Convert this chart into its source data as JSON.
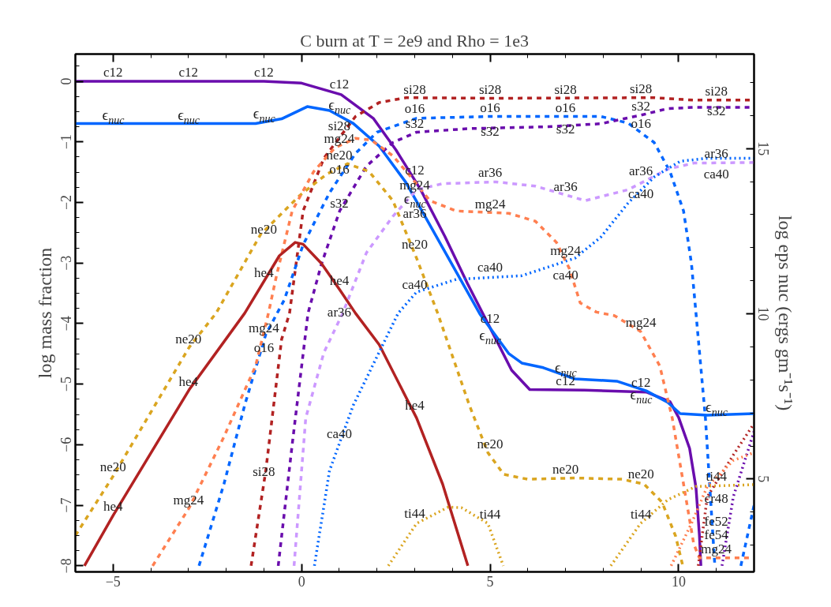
{
  "chart_data": {
    "type": "line",
    "title": "C burn at T = 2e9 and Rho = 1e3",
    "ylabel": "log mass fraction",
    "y2label": "log eps nuc (ergs gm⁻¹s⁻¹)",
    "xlim": [
      -6,
      12
    ],
    "ylim": [
      -8.1,
      0.45
    ],
    "y2lim": [
      2.19,
      17.86
    ],
    "xticks": [
      -5,
      0,
      5,
      10
    ],
    "yticks": [
      0,
      -1,
      -2,
      -3,
      -4,
      -5,
      -6,
      -7,
      -8
    ],
    "y2ticks": [
      5,
      10,
      15
    ],
    "grid": false,
    "marker": "none",
    "series": [
      {
        "color": "#6a0dad",
        "line_style": "solid",
        "x": [
          -6,
          -1,
          0,
          1.05,
          1.9,
          2.5,
          3.15,
          3.8,
          4.4,
          5.04,
          5.57,
          6.05,
          7.5,
          9.14,
          9.77,
          10.0,
          10.29,
          10.46,
          10.55,
          10.59
        ],
        "values": [
          0,
          0,
          -0.03,
          -0.22,
          -0.61,
          -1.13,
          -1.78,
          -2.56,
          -3.34,
          -4.12,
          -4.77,
          -5.09,
          -5.1,
          -5.13,
          -5.29,
          -5.55,
          -6.06,
          -6.71,
          -7.49,
          -8.0
        ]
      },
      {
        "color": "#0066ff",
        "line_style": "solid",
        "axis": "y2",
        "x": [
          -6,
          -1.22,
          -0.53,
          0.15,
          0.74,
          1.37,
          2.06,
          2.77,
          3.05,
          4.73,
          5.5,
          5.84,
          6.41,
          7.25,
          8.36,
          9.14,
          9.71,
          10.04,
          10.76,
          12
        ],
        "values": [
          15.76,
          15.76,
          15.9,
          16.27,
          16.15,
          15.76,
          15.07,
          13.97,
          13.4,
          9.99,
          8.79,
          8.51,
          8.37,
          8.03,
          7.96,
          7.67,
          7.32,
          6.98,
          6.93,
          6.98
        ]
      },
      {
        "color": "#b22222",
        "line_style": "dashed",
        "x": [
          -1.34,
          -0.95,
          -0.53,
          -0.32,
          0.04,
          0.59,
          1.43,
          2.06,
          2.77,
          5,
          9.35,
          10.4,
          12
        ],
        "values": [
          -8.0,
          -6.43,
          -4.26,
          -3.83,
          -2.14,
          -1.27,
          -0.58,
          -0.35,
          -0.27,
          -0.28,
          -0.27,
          -0.31,
          -0.31
        ]
      },
      {
        "color": "#0066ff",
        "line_style": "dashed",
        "x": [
          -2.72,
          -2.06,
          -1.51,
          -0.95,
          -0.46,
          0.04,
          0.74,
          1.43,
          2.0,
          3.05,
          5,
          7.94,
          8.66,
          9.35,
          9.77,
          10.13,
          10.34,
          10.46,
          10.71,
          10.96,
          11.3,
          11.65,
          12
        ],
        "values": [
          -8.0,
          -6.65,
          -5.35,
          -4.18,
          -3.61,
          -2.7,
          -1.84,
          -1.19,
          -0.84,
          -0.61,
          -0.58,
          -0.58,
          -0.69,
          -1.01,
          -1.49,
          -2.14,
          -3.01,
          -3.83,
          -5.56,
          -8.0,
          null,
          -8.0,
          -7.0
        ]
      },
      {
        "color": "#6a0dad",
        "line_style": "dashed",
        "x": [
          -0.62,
          -0.25,
          0.17,
          0.53,
          1.01,
          1.72,
          2.42,
          3.05,
          4.45,
          6.55,
          7.94,
          8.99,
          9.71,
          10.4,
          12
        ],
        "values": [
          -8.0,
          -6.0,
          -3.83,
          -3.01,
          -2.14,
          -1.4,
          -1.01,
          -0.84,
          -0.78,
          -0.75,
          -0.7,
          -0.56,
          -0.45,
          -0.43,
          -0.43
        ]
      },
      {
        "color": "#daa520",
        "line_style": "dashed",
        "x": [
          -6,
          -5.0,
          -2.98,
          -2.27,
          -1.09,
          -0.04,
          0.67,
          1.22,
          1.79,
          2.42,
          3.05,
          3.61,
          4.45,
          4.94,
          5.36,
          5.99,
          7.25,
          8.5,
          9.08,
          9.56,
          9.92,
          10.11
        ],
        "values": [
          -7.5,
          -6.52,
          -4.39,
          -3.83,
          -2.53,
          -1.88,
          -1.53,
          -1.36,
          -1.49,
          -1.97,
          -2.92,
          -3.83,
          -5.35,
          -6.13,
          -6.49,
          -6.57,
          -6.55,
          -6.57,
          -6.65,
          -6.95,
          -7.51,
          -8.0
        ]
      },
      {
        "color": "#ff7f50",
        "line_style": "dashed",
        "x": [
          -3.95,
          -2.98,
          -2.06,
          -1.22,
          -0.88,
          -0.67,
          -0.25,
          0.32,
          0.88,
          1.43,
          1.85,
          2.42,
          2.9,
          3.4,
          4.1,
          5.5,
          6.2,
          6.76,
          7.1,
          7.39,
          7.82,
          8.3,
          8.99,
          9.5,
          9.83,
          10.13,
          10.4,
          10.55,
          12
        ],
        "values": [
          -8.0,
          -7.04,
          -5.87,
          -4.7,
          -3.83,
          -3.22,
          -2.14,
          -1.49,
          -1.1,
          -0.94,
          -0.97,
          -1.23,
          -1.58,
          -1.97,
          -2.14,
          -2.18,
          -2.31,
          -2.66,
          -3.09,
          -3.66,
          -3.81,
          -3.87,
          -4.13,
          -4.7,
          -5.56,
          -6.65,
          -7.64,
          -7.87,
          -7.87
        ]
      },
      {
        "color": "#b22222",
        "line_style": "solid",
        "x": [
          -5.76,
          -5.0,
          -2.98,
          -1.51,
          -0.59,
          -0.17,
          0.04,
          0.53,
          1.01,
          1.43,
          2.06,
          3.05,
          3.74,
          4.41
        ],
        "values": [
          -8.0,
          -7.17,
          -5.09,
          -3.83,
          -2.88,
          -2.66,
          -2.69,
          -3.01,
          -3.44,
          -3.83,
          -4.35,
          -5.56,
          -6.65,
          -8.0
        ]
      },
      {
        "color": "#cc99ff",
        "line_style": "dashed",
        "x": [
          -0.2,
          0.11,
          0.59,
          1.09,
          1.72,
          2.42,
          3.05,
          3.74,
          5.15,
          6.2,
          7.52,
          8.66,
          9.71,
          10.4,
          12
        ],
        "values": [
          -8.0,
          -5.56,
          -4.48,
          -3.83,
          -2.83,
          -2.23,
          -1.79,
          -1.69,
          -1.66,
          -1.73,
          -1.97,
          -1.79,
          -1.45,
          -1.35,
          -1.34
        ]
      },
      {
        "color": "#0066ff",
        "line_style": "dotted",
        "x": [
          0.34,
          0.74,
          1.37,
          2.56,
          3.05,
          4.1,
          5.84,
          7.25,
          7.94,
          8.66,
          9.35,
          10.04,
          10.76,
          12
        ],
        "values": [
          -8.0,
          -6.43,
          -5.35,
          -3.83,
          -3.48,
          -3.27,
          -3.21,
          -2.92,
          -2.57,
          -2.01,
          -1.58,
          -1.32,
          -1.27,
          -1.27
        ]
      },
      {
        "color": "#daa520",
        "line_style": "dotted",
        "x": [
          2.3,
          3.05,
          3.89,
          4.24,
          4.94,
          5.35,
          6.8,
          8.2,
          8.99,
          9.71,
          10.46,
          12
        ],
        "values": [
          -8.0,
          -7.3,
          -7.03,
          -7.04,
          -7.3,
          -8.0,
          null,
          -8.0,
          -7.3,
          -6.91,
          -6.69,
          -6.66
        ]
      },
      {
        "color": "#b22222",
        "line_style": "dotted",
        "x": [
          10.52,
          10.76,
          11.45,
          12
        ],
        "values": [
          -8.0,
          -6.86,
          -6.17,
          -5.65
        ]
      },
      {
        "color": "#6a0dad",
        "line_style": "dotted",
        "x": [
          11.15,
          11.45,
          12
        ],
        "values": [
          -8.0,
          -6.86,
          -5.78
        ]
      },
      {
        "color": "#ff7f50",
        "line_style": "dotted",
        "x": [
          9.8,
          10.34,
          10.76,
          11.45,
          12
        ],
        "values": [
          -8.0,
          -7.3,
          -6.69,
          -6.26,
          -6.13
        ]
      }
    ],
    "annotations": [
      {
        "text": "c12",
        "x": -5,
        "y": 0.0
      },
      {
        "text": "c12",
        "x": -3,
        "y": 0.0
      },
      {
        "text": "c12",
        "x": -1,
        "y": 0.0
      },
      {
        "text": "c12",
        "x": 1,
        "y": -0.2
      },
      {
        "text": "c12",
        "x": 3,
        "y": -1.62
      },
      {
        "text": "c12",
        "x": 5,
        "y": -4.07
      },
      {
        "text": "c12",
        "x": 7,
        "y": -5.1
      },
      {
        "text": "c12",
        "x": 9,
        "y": -5.12
      },
      {
        "text": "ϵ$_{nuc}$",
        "x": -5,
        "y": -0.71
      },
      {
        "text": "ϵ$_{nuc}$",
        "x": -3,
        "y": -0.71
      },
      {
        "text": "ϵ$_{nuc}$",
        "x": -1,
        "y": -0.69
      },
      {
        "text": "ϵ$_{nuc}$",
        "x": 1,
        "y": -0.55
      },
      {
        "text": "ϵ$_{nuc}$",
        "x": 3,
        "y": -2.1
      },
      {
        "text": "ϵ$_{nuc}$",
        "x": 5,
        "y": -4.15
      },
      {
        "text": "ϵ$_{nuc}$",
        "x": 7,
        "y": -4.89
      },
      {
        "text": "ϵ$_{nuc}$",
        "x": 9,
        "y": -5.12
      },
      {
        "text": "ϵ$_{nuc}$",
        "x": 11,
        "y": -5.54
      },
      {
        "text": "si28",
        "x": 1,
        "y": -0.88
      },
      {
        "text": "si28",
        "x": 3,
        "y": -0.28
      },
      {
        "text": "si28",
        "x": 5,
        "y": -0.28
      },
      {
        "text": "si28",
        "x": 7,
        "y": -0.28
      },
      {
        "text": "si28",
        "x": 9,
        "y": -0.27
      },
      {
        "text": "si28",
        "x": 11,
        "y": -0.31
      },
      {
        "text": "si28",
        "x": -1,
        "y": -6.59
      },
      {
        "text": "o16",
        "x": 1,
        "y": -1.6
      },
      {
        "text": "o16",
        "x": 3,
        "y": -0.6
      },
      {
        "text": "o16",
        "x": 5,
        "y": -0.58
      },
      {
        "text": "o16",
        "x": 7,
        "y": -0.58
      },
      {
        "text": "o16",
        "x": 9,
        "y": -0.85
      },
      {
        "text": "o16",
        "x": -1,
        "y": -4.55
      },
      {
        "text": "s32",
        "x": 1,
        "y": -2.16
      },
      {
        "text": "s32",
        "x": 3,
        "y": -0.85
      },
      {
        "text": "s32",
        "x": 5,
        "y": -0.77
      },
      {
        "text": "s32",
        "x": 7,
        "y": -0.73
      },
      {
        "text": "s32",
        "x": 9,
        "y": -0.56
      },
      {
        "text": "s32",
        "x": 11,
        "y": -0.43
      },
      {
        "text": "mg24",
        "x": 1,
        "y": -1.09
      },
      {
        "text": "mg24",
        "x": 3,
        "y": -1.66
      },
      {
        "text": "mg24",
        "x": 5,
        "y": -2.17
      },
      {
        "text": "mg24",
        "x": 7,
        "y": -2.95
      },
      {
        "text": "mg24",
        "x": 9,
        "y": -4.13
      },
      {
        "text": "mg24",
        "x": 11,
        "y": -7.87
      },
      {
        "text": "mg24",
        "x": -1,
        "y": -4.22
      },
      {
        "text": "mg24",
        "x": -3,
        "y": -7.06
      },
      {
        "text": "ne20",
        "x": 1,
        "y": -1.37
      },
      {
        "text": "ne20",
        "x": 3,
        "y": -2.84
      },
      {
        "text": "ne20",
        "x": 5,
        "y": -6.14
      },
      {
        "text": "ne20",
        "x": 7,
        "y": -6.55
      },
      {
        "text": "ne20",
        "x": 9,
        "y": -6.64
      },
      {
        "text": "ne20",
        "x": -1,
        "y": -2.59
      },
      {
        "text": "ne20",
        "x": -3,
        "y": -4.41
      },
      {
        "text": "ne20",
        "x": -5,
        "y": -6.52
      },
      {
        "text": "he4",
        "x": -1,
        "y": -3.31
      },
      {
        "text": "he4",
        "x": 1,
        "y": -3.44
      },
      {
        "text": "he4",
        "x": 3,
        "y": -5.5
      },
      {
        "text": "he4",
        "x": -3,
        "y": -5.11
      },
      {
        "text": "he4",
        "x": -5,
        "y": -7.17
      },
      {
        "text": "ar36",
        "x": 1,
        "y": -3.96
      },
      {
        "text": "ar36",
        "x": 3,
        "y": -1.91
      },
      {
        "text": "ar36",
        "x": 5,
        "y": -1.66
      },
      {
        "text": "ar36",
        "x": 7,
        "y": -1.89
      },
      {
        "text": "ar36",
        "x": 9,
        "y": -1.63
      },
      {
        "text": "ar36",
        "x": 11,
        "y": -1.34
      },
      {
        "text": "ca40",
        "x": 1,
        "y": -5.97
      },
      {
        "text": "ca40",
        "x": 3,
        "y": -3.5
      },
      {
        "text": "ca40",
        "x": 5,
        "y": -3.22
      },
      {
        "text": "ca40",
        "x": 7,
        "y": -2.93
      },
      {
        "text": "ca40",
        "x": 9,
        "y": -1.8
      },
      {
        "text": "ca40",
        "x": 11,
        "y": -1.27
      },
      {
        "text": "ti44",
        "x": 3,
        "y": -7.28
      },
      {
        "text": "ti44",
        "x": 5,
        "y": -7.3
      },
      {
        "text": "ti44",
        "x": 9,
        "y": -7.3
      },
      {
        "text": "ti44",
        "x": 11,
        "y": -6.67
      },
      {
        "text": "cr48",
        "x": 11,
        "y": -6.62
      },
      {
        "text": "fe52",
        "x": 11,
        "y": -7.0
      },
      {
        "text": "fe54",
        "x": 11,
        "y": -8.05
      }
    ]
  }
}
